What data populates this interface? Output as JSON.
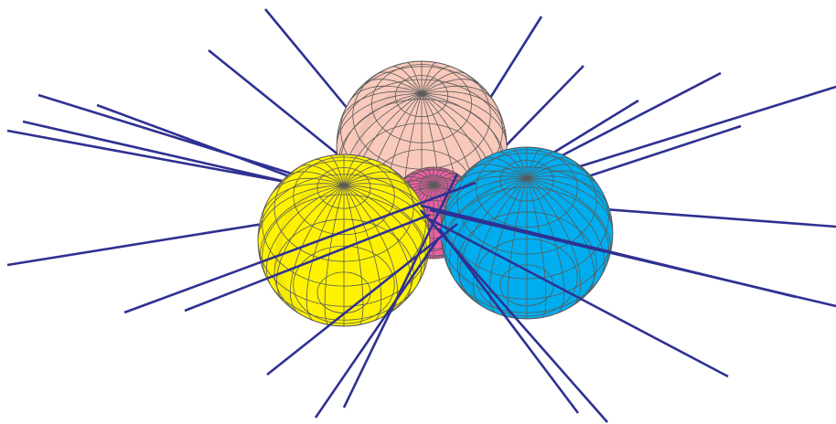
{
  "colors": {
    "background": "#ffffff",
    "line": "#2e3192",
    "mesh": "#5a5a5a",
    "sphere_pink": "#f9c9bb",
    "sphere_magenta": "#ec5fa5",
    "sphere_yellow": "#fff200",
    "sphere_cyan": "#00aeef"
  },
  "spheres": [
    {
      "id": "sphere-pink-back",
      "color_key": "sphere_pink"
    },
    {
      "id": "sphere-magenta-center",
      "color_key": "sphere_magenta"
    },
    {
      "id": "sphere-yellow-left",
      "color_key": "sphere_yellow"
    },
    {
      "id": "sphere-cyan-right",
      "color_key": "sphere_cyan"
    }
  ]
}
